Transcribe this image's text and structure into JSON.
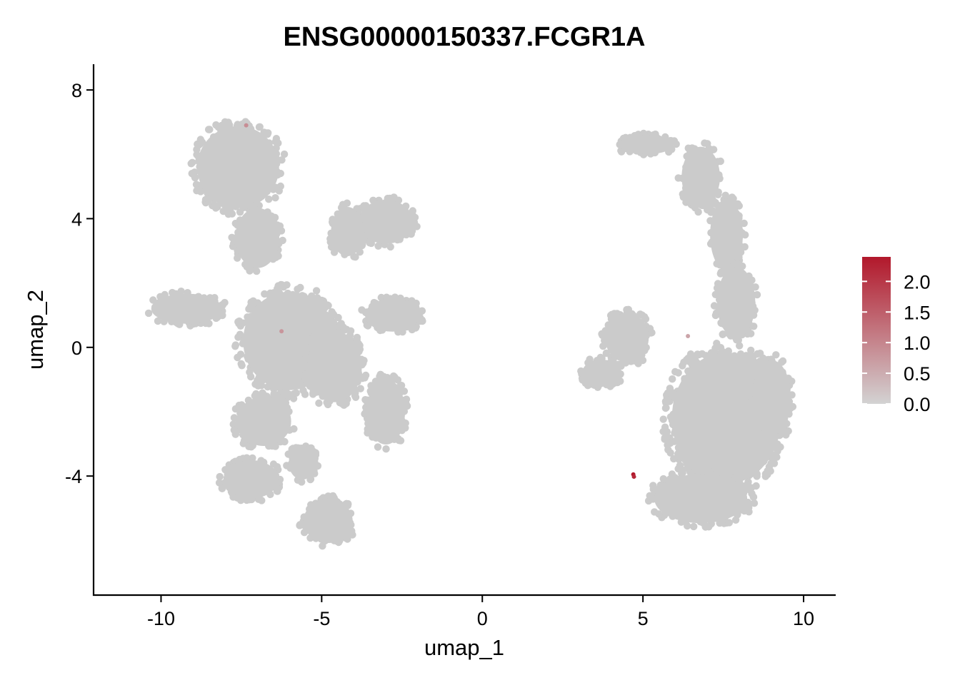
{
  "chart_data": {
    "type": "scatter",
    "title": "ENSG00000150337.FCGR1A",
    "xlabel": "umap_1",
    "ylabel": "umap_2",
    "xlim": [
      -12.1,
      11.0
    ],
    "ylim": [
      -7.7,
      8.8
    ],
    "x_ticks": [
      -10,
      -5,
      0,
      5,
      10
    ],
    "x_tick_labels": [
      "-10",
      "-5",
      "0",
      "5",
      "10"
    ],
    "y_ticks": [
      -4,
      0,
      4,
      8
    ],
    "y_tick_labels": [
      "-4",
      "0",
      "4",
      "8"
    ],
    "grid": false,
    "legend_position": "right",
    "colorbar": {
      "min": 0.0,
      "max": 2.4,
      "low_color": "#d3d3d3",
      "high_color": "#b2182b",
      "ticks": [
        0.0,
        0.5,
        1.0,
        1.5,
        2.0
      ],
      "tick_labels": [
        "0.0",
        "0.5",
        "1.0",
        "1.5",
        "2.0"
      ]
    },
    "point_color_default": "#cbcbcb",
    "clusters": [
      {
        "cx": -7.6,
        "cy": 5.6,
        "rx": 1.5,
        "ry": 1.5
      },
      {
        "cx": -7.0,
        "cy": 3.4,
        "rx": 0.8,
        "ry": 1.1
      },
      {
        "cx": -3.0,
        "cy": 3.9,
        "rx": 1.0,
        "ry": 0.8
      },
      {
        "cx": -4.2,
        "cy": 3.6,
        "rx": 0.6,
        "ry": 0.9
      },
      {
        "cx": -9.2,
        "cy": 1.2,
        "rx": 1.3,
        "ry": 0.55
      },
      {
        "cx": -6.0,
        "cy": 0.2,
        "rx": 1.7,
        "ry": 1.8
      },
      {
        "cx": -4.6,
        "cy": -0.6,
        "rx": 1.0,
        "ry": 1.3
      },
      {
        "cx": -2.8,
        "cy": 1.0,
        "rx": 1.0,
        "ry": 0.6
      },
      {
        "cx": -6.8,
        "cy": -2.3,
        "rx": 1.0,
        "ry": 0.9
      },
      {
        "cx": -3.0,
        "cy": -2.0,
        "rx": 0.7,
        "ry": 1.2
      },
      {
        "cx": -7.2,
        "cy": -4.1,
        "rx": 1.0,
        "ry": 0.7
      },
      {
        "cx": -4.8,
        "cy": -5.4,
        "rx": 0.9,
        "ry": 0.8
      },
      {
        "cx": -5.6,
        "cy": -3.6,
        "rx": 0.5,
        "ry": 0.6
      },
      {
        "cx": 5.1,
        "cy": 6.3,
        "rx": 1.0,
        "ry": 0.35
      },
      {
        "cx": 6.8,
        "cy": 5.3,
        "rx": 0.7,
        "ry": 1.1
      },
      {
        "cx": 7.6,
        "cy": 3.5,
        "rx": 0.6,
        "ry": 1.3
      },
      {
        "cx": 7.9,
        "cy": 1.4,
        "rx": 0.7,
        "ry": 1.3
      },
      {
        "cx": 7.6,
        "cy": -2.2,
        "rx": 2.0,
        "ry": 2.4
      },
      {
        "cx": 6.8,
        "cy": -4.7,
        "rx": 1.7,
        "ry": 0.9
      },
      {
        "cx": 4.5,
        "cy": 0.3,
        "rx": 0.8,
        "ry": 0.9
      },
      {
        "cx": 3.7,
        "cy": -0.8,
        "rx": 0.7,
        "ry": 0.5
      },
      {
        "cx": 9.0,
        "cy": -1.5,
        "rx": 0.7,
        "ry": 1.3
      }
    ],
    "expressing_points": [
      {
        "x": 4.7,
        "y": -3.95,
        "value": 2.4
      },
      {
        "x": 4.72,
        "y": -4.02,
        "value": 2.2
      },
      {
        "x": -7.35,
        "y": 6.9,
        "value": 0.9
      },
      {
        "x": -6.25,
        "y": 0.5,
        "value": 0.8
      },
      {
        "x": 6.4,
        "y": 0.35,
        "value": 0.6
      }
    ]
  }
}
